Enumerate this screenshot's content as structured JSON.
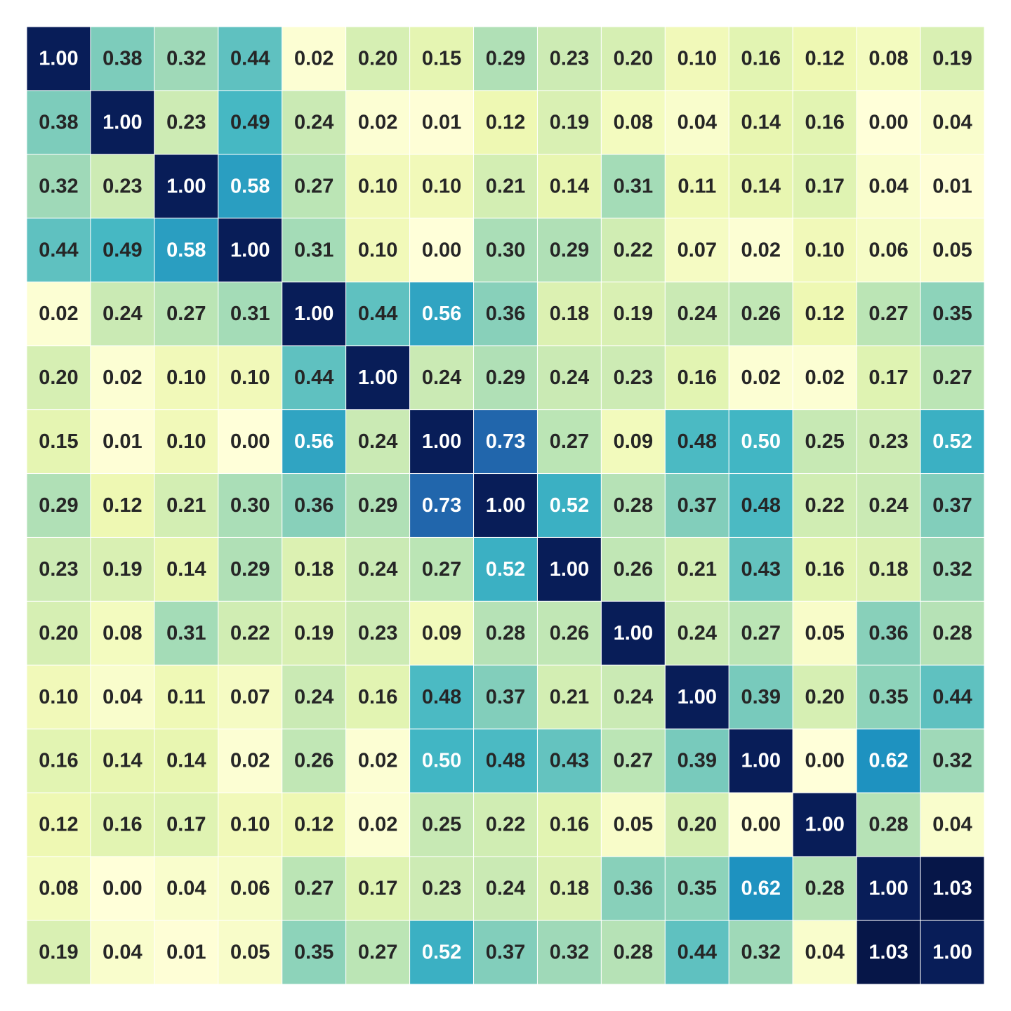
{
  "chart_data": {
    "type": "heatmap",
    "title": "",
    "xlabel": "",
    "ylabel": "",
    "colormap": "YlGnBu",
    "vmin": 0.0,
    "vmax": 1.0,
    "annotated": true,
    "value_format": "0.00",
    "values": [
      [
        1.0,
        0.38,
        0.32,
        0.44,
        0.02,
        0.2,
        0.15,
        0.29,
        0.23,
        0.2,
        0.1,
        0.16,
        0.12,
        0.08,
        0.19
      ],
      [
        0.38,
        1.0,
        0.23,
        0.49,
        0.24,
        0.02,
        0.01,
        0.12,
        0.19,
        0.08,
        0.04,
        0.14,
        0.16,
        0.0,
        0.04
      ],
      [
        0.32,
        0.23,
        1.0,
        0.58,
        0.27,
        0.1,
        0.1,
        0.21,
        0.14,
        0.31,
        0.11,
        0.14,
        0.17,
        0.04,
        0.01
      ],
      [
        0.44,
        0.49,
        0.58,
        1.0,
        0.31,
        0.1,
        0.0,
        0.3,
        0.29,
        0.22,
        0.07,
        0.02,
        0.1,
        0.06,
        0.05
      ],
      [
        0.02,
        0.24,
        0.27,
        0.31,
        1.0,
        0.44,
        0.56,
        0.36,
        0.18,
        0.19,
        0.24,
        0.26,
        0.12,
        0.27,
        0.35
      ],
      [
        0.2,
        0.02,
        0.1,
        0.1,
        0.44,
        1.0,
        0.24,
        0.29,
        0.24,
        0.23,
        0.16,
        0.02,
        0.02,
        0.17,
        0.27
      ],
      [
        0.15,
        0.01,
        0.1,
        0.0,
        0.56,
        0.24,
        1.0,
        0.73,
        0.27,
        0.09,
        0.48,
        0.5,
        0.25,
        0.23,
        0.52
      ],
      [
        0.29,
        0.12,
        0.21,
        0.3,
        0.36,
        0.29,
        0.73,
        1.0,
        0.52,
        0.28,
        0.37,
        0.48,
        0.22,
        0.24,
        0.37
      ],
      [
        0.23,
        0.19,
        0.14,
        0.29,
        0.18,
        0.24,
        0.27,
        0.52,
        1.0,
        0.26,
        0.21,
        0.43,
        0.16,
        0.18,
        0.32
      ],
      [
        0.2,
        0.08,
        0.31,
        0.22,
        0.19,
        0.23,
        0.09,
        0.28,
        0.26,
        1.0,
        0.24,
        0.27,
        0.05,
        0.36,
        0.28
      ],
      [
        0.1,
        0.04,
        0.11,
        0.07,
        0.24,
        0.16,
        0.48,
        0.37,
        0.21,
        0.24,
        1.0,
        0.39,
        0.2,
        0.35,
        0.44
      ],
      [
        0.16,
        0.14,
        0.14,
        0.02,
        0.26,
        0.02,
        0.5,
        0.48,
        0.43,
        0.27,
        0.39,
        1.0,
        0.0,
        0.62,
        0.32
      ],
      [
        0.12,
        0.16,
        0.17,
        0.1,
        0.12,
        0.02,
        0.25,
        0.22,
        0.16,
        0.05,
        0.2,
        0.0,
        1.0,
        0.28,
        0.04
      ],
      [
        0.08,
        0.0,
        0.04,
        0.06,
        0.27,
        0.17,
        0.23,
        0.24,
        0.18,
        0.36,
        0.35,
        0.62,
        0.28,
        1.0,
        1.03
      ],
      [
        0.19,
        0.04,
        0.01,
        0.05,
        0.35,
        0.27,
        0.52,
        0.37,
        0.32,
        0.28,
        0.44,
        0.32,
        0.04,
        1.03,
        1.0
      ]
    ],
    "colors": {
      "text_dark": "#262626",
      "text_light": "#ffffff",
      "grid_line": "#ffffff"
    }
  }
}
